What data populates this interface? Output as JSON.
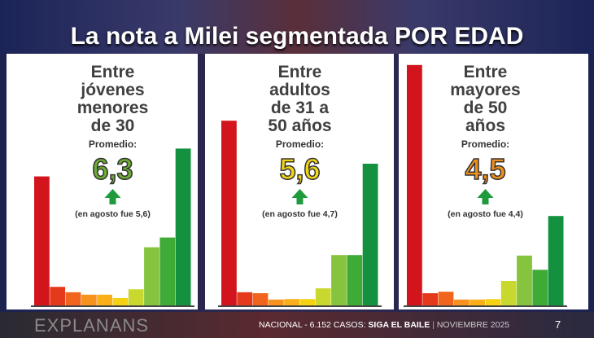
{
  "header": {
    "title": "La nota a Milei segmentada POR EDAD"
  },
  "chart_data": [
    {
      "type": "bar",
      "title": [
        "Entre",
        "jóvenes",
        "menores",
        "de 30"
      ],
      "promedio_label": "Promedio:",
      "promedio": "6,3",
      "promedio_color": "#6cab34",
      "note": "(en agosto fue 5,6)",
      "values": [
        26.4,
        3.8,
        2.7,
        2.2,
        2.2,
        1.5,
        3.3,
        11.9,
        13.9,
        32.1
      ],
      "colors": [
        "#d2151c",
        "#e5391b",
        "#f0641d",
        "#f6921d",
        "#f9ae1a",
        "#f6d214",
        "#c9d82e",
        "#86c440",
        "#3fab37",
        "#13913f"
      ],
      "ylim": [
        0,
        50
      ]
    },
    {
      "type": "bar",
      "title": [
        "Entre",
        "adultos",
        "de 31 a",
        "50 años"
      ],
      "promedio_label": "Promedio:",
      "promedio": "5,6",
      "promedio_color": "#f2d614",
      "note": "(en agosto fue 4,7)",
      "values": [
        37.8,
        2.7,
        2.5,
        1.2,
        1.3,
        1.3,
        3.5,
        10.3,
        10.3,
        29.0
      ],
      "colors": [
        "#d2151c",
        "#e5391b",
        "#f0641d",
        "#f6921d",
        "#f9ae1a",
        "#f6d214",
        "#c9d82e",
        "#86c440",
        "#3fab37",
        "#13913f"
      ],
      "ylim": [
        0,
        50
      ]
    },
    {
      "type": "bar",
      "title": [
        "Entre",
        "mayores",
        "de 50",
        "años"
      ],
      "promedio_label": "Promedio:",
      "promedio": "4,5",
      "promedio_color": "#f0901c",
      "note": "(en agosto fue 4,4)",
      "values": [
        49.2,
        2.5,
        2.8,
        1.2,
        1.2,
        1.3,
        5.0,
        10.2,
        7.3,
        18.3
      ],
      "colors": [
        "#d2151c",
        "#e5391b",
        "#f0641d",
        "#f6921d",
        "#f9ae1a",
        "#f6d214",
        "#c9d82e",
        "#86c440",
        "#3fab37",
        "#13913f"
      ],
      "ylim": [
        0,
        50
      ]
    }
  ],
  "footer": {
    "brand": "EXPLANANS",
    "sample": "NACIONAL - 6.152 CASOS:",
    "study": "SIGA EL BAILE",
    "date": "NOVIEMBRE 2025",
    "page": "7"
  }
}
